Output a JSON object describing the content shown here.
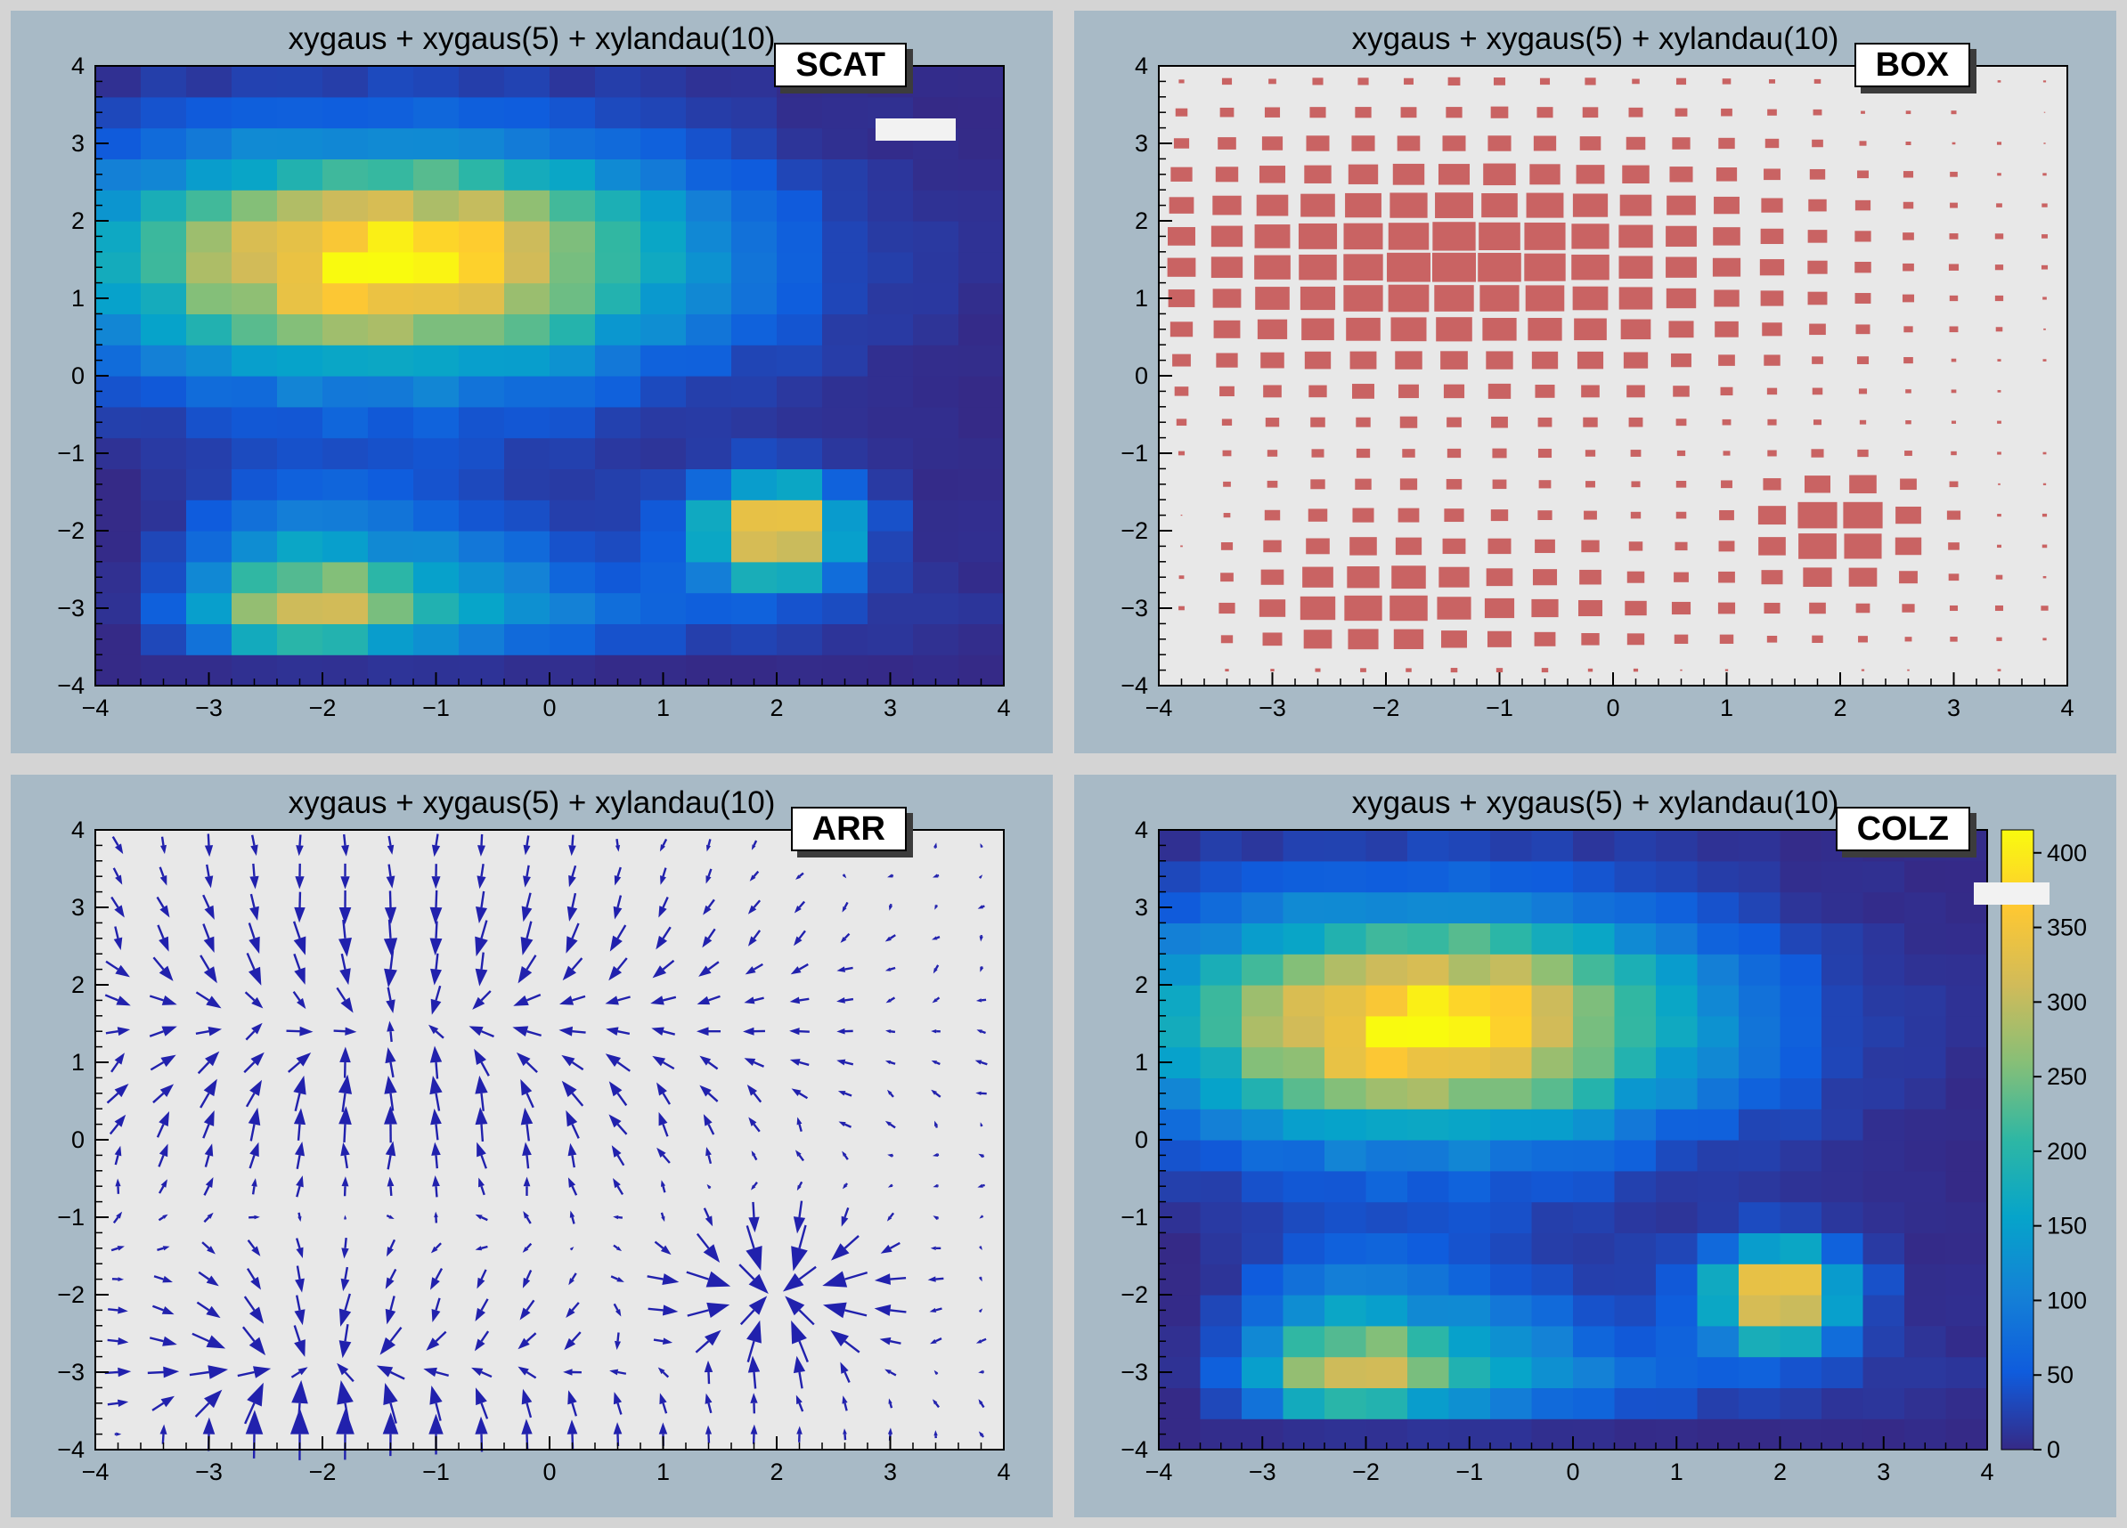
{
  "canvas": {
    "background": "#d4d4d4",
    "pad_background": "#a8bac6",
    "frame_background": "#e8e8e8",
    "stats_box_color": "#f2f2f2"
  },
  "pads": [
    {
      "id": "scat",
      "title": "xygaus + xygaus(5) + xylandau(10)",
      "option_label": "SCAT",
      "has_stats_box": true
    },
    {
      "id": "box",
      "title": "xygaus + xygaus(5) + xylandau(10)",
      "option_label": "BOX",
      "has_stats_box": false
    },
    {
      "id": "arr",
      "title": "xygaus + xygaus(5) + xylandau(10)",
      "option_label": "ARR",
      "has_stats_box": false
    },
    {
      "id": "colz",
      "title": "xygaus + xygaus(5) + xylandau(10)",
      "option_label": "COLZ",
      "has_stats_box": true
    }
  ],
  "chart_data": {
    "type": "heatmap",
    "title": "xygaus + xygaus(5) + xylandau(10)",
    "function": "xygaus + xygaus(5) + xylandau(10)",
    "x_range": [
      -4,
      4
    ],
    "y_range": [
      -4,
      4
    ],
    "n_bins_x": 20,
    "n_bins_y": 20,
    "x_tick_labels": [
      "−4",
      "−3",
      "−2",
      "−1",
      "0",
      "1",
      "2",
      "3",
      "4"
    ],
    "y_tick_labels": [
      "−4",
      "−3",
      "−2",
      "−1",
      "0",
      "1",
      "2",
      "3",
      "4"
    ],
    "z_axis": {
      "min": 0,
      "max": 400,
      "ticks": [
        0,
        50,
        100,
        150,
        200,
        250,
        300,
        350,
        400
      ]
    },
    "components": [
      {
        "type": "gaussian",
        "peak": 400,
        "mean_x": -1.4,
        "sigma_x": 1.8,
        "mean_y": 1.5,
        "sigma_y": 1.0
      },
      {
        "type": "gaussian",
        "peak": 380,
        "mean_x": 2.0,
        "sigma_x": 0.45,
        "mean_y": -2.0,
        "sigma_y": 0.45
      },
      {
        "type": "landau",
        "peak": 310,
        "mpv_x": -2.1,
        "sigma_x": 0.7,
        "mpv_y": -3.0,
        "sigma_y": 0.35
      }
    ],
    "views": [
      {
        "pad": 1,
        "option": "SCAT",
        "style": "color-map",
        "palette": false
      },
      {
        "pad": 2,
        "option": "BOX",
        "style": "boxes",
        "palette": false,
        "box_color": "#c96363"
      },
      {
        "pad": 3,
        "option": "ARR",
        "style": "arrows",
        "palette": false,
        "arrow_color": "#2121ad"
      },
      {
        "pad": 4,
        "option": "COLZ",
        "style": "color-map",
        "palette": true
      }
    ],
    "palette_colors": [
      "#352A87",
      "#0F5CDD",
      "#1481D6",
      "#06A4CA",
      "#2EB7A4",
      "#87BF77",
      "#D1BB59",
      "#FEC832",
      "#F9FB0E"
    ]
  }
}
